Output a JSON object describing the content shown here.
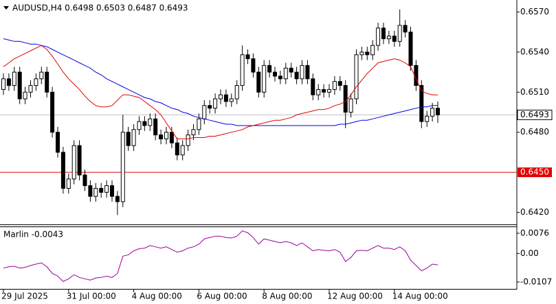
{
  "chart_data": [
    {
      "type": "candlestick",
      "title": "AUDUSD,H4  0.6498 0.6503 0.6487 0.6493",
      "categories": [
        "29 Jul 2025",
        null,
        null,
        null,
        null,
        null,
        null,
        null,
        null,
        null,
        null,
        null,
        "31 Jul 00:00",
        null,
        null,
        null,
        null,
        null,
        null,
        null,
        null,
        null,
        null,
        null,
        "4 Aug 00:00",
        null,
        null,
        null,
        null,
        null,
        null,
        null,
        null,
        null,
        null,
        null,
        "6 Aug 00:00",
        null,
        null,
        null,
        null,
        null,
        null,
        null,
        null,
        null,
        null,
        null,
        "8 Aug 00:00",
        null,
        null,
        null,
        null,
        null,
        null,
        null,
        null,
        null,
        null,
        null,
        "12 Aug 00:00",
        null,
        null,
        null,
        null,
        null,
        null,
        null,
        null,
        null,
        null,
        null,
        "14 Aug 00:00",
        null,
        null,
        null,
        null,
        null,
        null,
        null,
        null
      ],
      "open": [
        0.6512,
        0.652,
        0.6515,
        0.6525,
        0.6505,
        0.651,
        0.6515,
        0.652,
        0.6525,
        0.651,
        0.648,
        0.6465,
        0.6438,
        0.6445,
        0.647,
        0.6448,
        0.644,
        0.6432,
        0.6438,
        0.6435,
        0.644,
        0.6432,
        0.6428,
        0.648,
        0.647,
        0.6482,
        0.6488,
        0.6485,
        0.649,
        0.6478,
        0.6475,
        0.648,
        0.6472,
        0.6463,
        0.647,
        0.6478,
        0.6482,
        0.649,
        0.65,
        0.6498,
        0.6505,
        0.6508,
        0.6503,
        0.6505,
        0.6515,
        0.6538,
        0.6535,
        0.6525,
        0.651,
        0.653,
        0.6525,
        0.6522,
        0.652,
        0.6528,
        0.6525,
        0.652,
        0.653,
        0.652,
        0.6508,
        0.6512,
        0.651,
        0.6512,
        0.6518,
        0.6515,
        0.6495,
        0.6505,
        0.6538,
        0.654,
        0.6538,
        0.6545,
        0.6558,
        0.655,
        0.6552,
        0.6548,
        0.656,
        0.6555,
        0.653,
        0.6515,
        0.6488,
        0.6492,
        0.6498
      ],
      "high": [
        0.6524,
        0.6524,
        0.6529,
        0.6529,
        0.6514,
        0.6519,
        0.6524,
        0.6529,
        0.6529,
        0.6514,
        0.6484,
        0.6469,
        0.6449,
        0.6474,
        0.6474,
        0.6452,
        0.6444,
        0.6442,
        0.6442,
        0.6444,
        0.6444,
        0.6436,
        0.6493,
        0.6484,
        0.6486,
        0.6492,
        0.6492,
        0.6494,
        0.6494,
        0.6482,
        0.6484,
        0.6484,
        0.6476,
        0.6474,
        0.6482,
        0.6486,
        0.6494,
        0.6504,
        0.6504,
        0.6509,
        0.6512,
        0.6512,
        0.6509,
        0.6519,
        0.6545,
        0.6542,
        0.6539,
        0.6529,
        0.6534,
        0.6534,
        0.6529,
        0.6526,
        0.6532,
        0.6532,
        0.6529,
        0.6534,
        0.6534,
        0.6524,
        0.6516,
        0.6516,
        0.6516,
        0.6522,
        0.6522,
        0.6519,
        0.6509,
        0.6542,
        0.6544,
        0.6544,
        0.6549,
        0.6562,
        0.6562,
        0.6556,
        0.6556,
        0.6572,
        0.6564,
        0.6559,
        0.6534,
        0.6519,
        0.6496,
        0.6502,
        0.6503
      ],
      "low": [
        0.6508,
        0.6511,
        0.6511,
        0.6501,
        0.6501,
        0.6506,
        0.6511,
        0.6516,
        0.6506,
        0.6476,
        0.6461,
        0.6434,
        0.6434,
        0.6441,
        0.6444,
        0.6436,
        0.6428,
        0.6428,
        0.6431,
        0.6431,
        0.6428,
        0.6418,
        0.6424,
        0.6466,
        0.6466,
        0.6478,
        0.6481,
        0.6481,
        0.6474,
        0.6471,
        0.6471,
        0.6468,
        0.6459,
        0.6459,
        0.6466,
        0.6474,
        0.6478,
        0.6486,
        0.6494,
        0.6494,
        0.6501,
        0.6499,
        0.6499,
        0.6501,
        0.6511,
        0.6531,
        0.6521,
        0.6506,
        0.6506,
        0.6521,
        0.6518,
        0.6516,
        0.6516,
        0.6521,
        0.6516,
        0.6516,
        0.6516,
        0.6504,
        0.6504,
        0.6506,
        0.6506,
        0.6508,
        0.6511,
        0.6483,
        0.6491,
        0.6501,
        0.6534,
        0.6534,
        0.6534,
        0.6541,
        0.6546,
        0.6546,
        0.6544,
        0.6544,
        0.6551,
        0.6526,
        0.6511,
        0.6483,
        0.6484,
        0.6488,
        0.6487
      ],
      "close": [
        0.652,
        0.6515,
        0.6525,
        0.6505,
        0.651,
        0.6515,
        0.652,
        0.6525,
        0.651,
        0.648,
        0.6465,
        0.6438,
        0.6445,
        0.647,
        0.6448,
        0.644,
        0.6432,
        0.6438,
        0.6435,
        0.644,
        0.6432,
        0.6428,
        0.648,
        0.647,
        0.6482,
        0.6488,
        0.6485,
        0.649,
        0.6478,
        0.6475,
        0.648,
        0.6472,
        0.6463,
        0.647,
        0.6478,
        0.6482,
        0.649,
        0.65,
        0.6498,
        0.6505,
        0.6508,
        0.6503,
        0.6505,
        0.6515,
        0.6538,
        0.6535,
        0.6525,
        0.651,
        0.653,
        0.6525,
        0.6522,
        0.652,
        0.6528,
        0.6525,
        0.652,
        0.653,
        0.652,
        0.6508,
        0.6512,
        0.651,
        0.6512,
        0.6518,
        0.6515,
        0.6495,
        0.6505,
        0.6538,
        0.654,
        0.6538,
        0.6545,
        0.6558,
        0.655,
        0.6552,
        0.6548,
        0.656,
        0.6555,
        0.653,
        0.6515,
        0.6488,
        0.6492,
        0.6498,
        0.6493
      ],
      "series": [
        {
          "color": "#0000e0",
          "values": [
            0.655,
            0.6549,
            0.6548,
            0.6548,
            0.6547,
            0.6546,
            0.6546,
            0.6545,
            0.6544,
            0.6542,
            0.654,
            0.6538,
            0.6536,
            0.6534,
            0.6532,
            0.653,
            0.6528,
            0.6525,
            0.6523,
            0.652,
            0.6518,
            0.6516,
            0.6514,
            0.6512,
            0.651,
            0.6508,
            0.6506,
            0.6505,
            0.6503,
            0.6502,
            0.65,
            0.6498,
            0.6497,
            0.6495,
            0.6494,
            0.6492,
            0.6491,
            0.649,
            0.6489,
            0.6488,
            0.6487,
            0.6486,
            0.6486,
            0.6485,
            0.6485,
            0.6485,
            0.6485,
            0.6485,
            0.6485,
            0.6485,
            0.6485,
            0.6485,
            0.6485,
            0.6485,
            0.6485,
            0.6485,
            0.6485,
            0.6485,
            0.6485,
            0.6485,
            0.6485,
            0.6485,
            0.6486,
            0.6486,
            0.6487,
            0.6488,
            0.6489,
            0.6489,
            0.649,
            0.6491,
            0.6492,
            0.6493,
            0.6494,
            0.6495,
            0.6496,
            0.6497,
            0.6498,
            0.6499,
            0.6499,
            0.65,
            0.65
          ]
        },
        {
          "color": "#e00000",
          "values": [
            0.6529,
            0.6532,
            0.6535,
            0.6537,
            0.6539,
            0.6541,
            0.6543,
            0.6545,
            0.6542,
            0.6537,
            0.6531,
            0.6525,
            0.652,
            0.6516,
            0.6512,
            0.6507,
            0.6503,
            0.65,
            0.6499,
            0.6499,
            0.65,
            0.6504,
            0.6508,
            0.6508,
            0.6507,
            0.6506,
            0.6503,
            0.65,
            0.6497,
            0.6493,
            0.6487,
            0.6481,
            0.6475,
            0.6475,
            0.6475,
            0.6476,
            0.6476,
            0.6476,
            0.6477,
            0.6477,
            0.6478,
            0.6479,
            0.648,
            0.6481,
            0.6482,
            0.6484,
            0.6485,
            0.6486,
            0.6487,
            0.6488,
            0.6489,
            0.6489,
            0.649,
            0.6491,
            0.6493,
            0.6494,
            0.6495,
            0.6496,
            0.6497,
            0.6497,
            0.6498,
            0.65,
            0.6501,
            0.6503,
            0.6508,
            0.6514,
            0.6519,
            0.6524,
            0.6528,
            0.6532,
            0.6533,
            0.6534,
            0.6535,
            0.6534,
            0.6532,
            0.6529,
            0.652,
            0.6511,
            0.6509,
            0.6508,
            0.6508
          ]
        }
      ],
      "ylim": [
        0.6411,
        0.6579
      ],
      "yticks": [
        {
          "value": 0.657,
          "label": "0.6570"
        },
        {
          "value": 0.654,
          "label": "0.6540"
        },
        {
          "value": 0.651,
          "label": "0.6510"
        },
        {
          "value": 0.648,
          "label": "0.6480"
        },
        {
          "value": 0.642,
          "label": "0.6420"
        }
      ],
      "level_line": {
        "value": 0.645,
        "label": "0.6450",
        "color": "#e00000"
      },
      "price_line": {
        "value": 0.6493,
        "label": "0.6493"
      }
    },
    {
      "type": "line",
      "title": "Marlin -0.0043",
      "color": "#990099",
      "values": [
        -0.0055,
        -0.005,
        -0.0048,
        -0.0055,
        -0.0052,
        -0.0045,
        -0.004,
        -0.0035,
        -0.005,
        -0.0075,
        -0.0085,
        -0.0105,
        -0.0095,
        -0.008,
        -0.009,
        -0.0095,
        -0.01,
        -0.0092,
        -0.009,
        -0.0085,
        -0.009,
        -0.0075,
        -0.001,
        -0.0005,
        0.001,
        0.0018,
        0.002,
        0.003,
        0.0025,
        0.002,
        0.0025,
        0.0015,
        0.0005,
        0.001,
        0.002,
        0.0025,
        0.0035,
        0.0055,
        0.006,
        0.0065,
        0.0065,
        0.006,
        0.0058,
        0.0065,
        0.0085,
        0.0078,
        0.006,
        0.0035,
        0.0055,
        0.005,
        0.0045,
        0.004,
        0.0045,
        0.004,
        0.003,
        0.004,
        0.0025,
        0.001,
        0.0015,
        0.0012,
        0.001,
        0.0015,
        0.0005,
        -0.003,
        -0.0015,
        0.001,
        0.0012,
        0.001,
        0.002,
        0.003,
        0.002,
        0.002,
        0.0015,
        0.0025,
        0.001,
        -0.0025,
        -0.0045,
        -0.0065,
        -0.0055,
        -0.004,
        -0.0043
      ],
      "ylim": [
        -0.0133,
        0.0099
      ],
      "yticks": [
        0.0076,
        {
          "value": 0,
          "label": "0.00"
        },
        -0.0107
      ]
    }
  ]
}
